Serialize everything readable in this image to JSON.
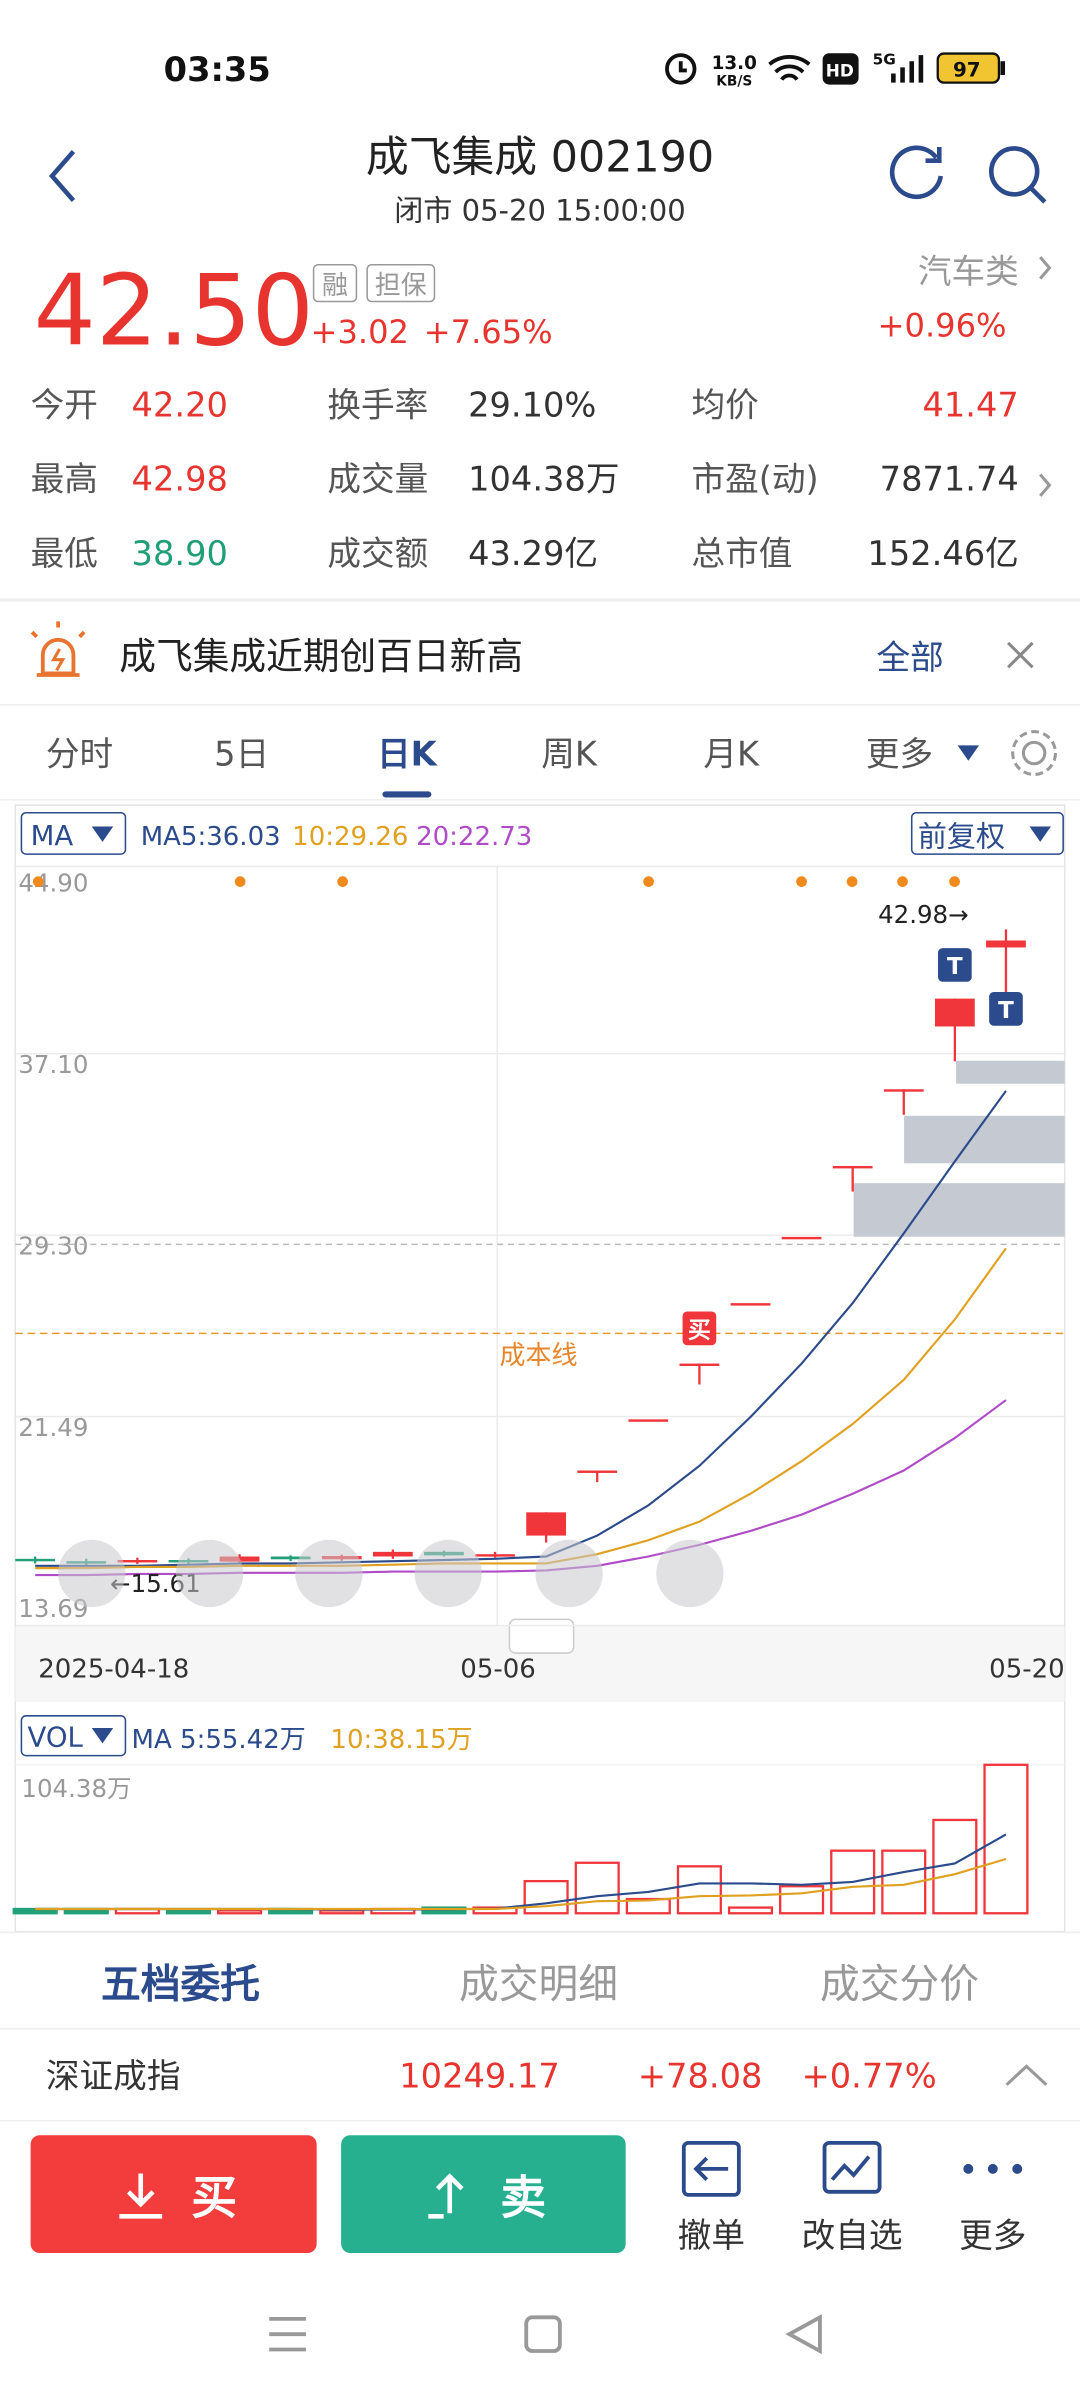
{
  "status_bar": {
    "time": "03:35",
    "net_speed": "13.0",
    "net_unit": "KB/S",
    "hd": "HD",
    "signal": "5G",
    "battery": "97"
  },
  "header": {
    "title": "成飞集成 002190",
    "subtitle": "闭市 05-20 15:00:00"
  },
  "quote": {
    "price": "42.50",
    "tags": [
      "融",
      "担保"
    ],
    "change": "+3.02",
    "change_pct": "+7.65%",
    "sector": "汽车类",
    "sector_change": "+0.96%"
  },
  "stats": [
    [
      {
        "label": "今开",
        "value": "42.20"
      },
      {
        "label": "换手率",
        "value": "29.10%"
      },
      {
        "label": "均价",
        "value": "41.47"
      }
    ],
    [
      {
        "label": "最高",
        "value": "42.98"
      },
      {
        "label": "成交量",
        "value": "104.38万"
      },
      {
        "label": "市盈(动)",
        "value": "7871.74"
      }
    ],
    [
      {
        "label": "最低",
        "value": "38.90"
      },
      {
        "label": "成交额",
        "value": "43.29亿"
      },
      {
        "label": "总市值",
        "value": "152.46亿"
      }
    ]
  ],
  "news": {
    "text": "成飞集成近期创百日新高",
    "action": "全部"
  },
  "tabs": [
    "分时",
    "5日",
    "日K",
    "周K",
    "月K",
    "更多"
  ],
  "kline": {
    "type": "candlestick",
    "indicator": "MA",
    "adjust": "前复权",
    "categories": [
      "2025-04-18",
      null,
      null,
      null,
      null,
      null,
      null,
      null,
      null,
      "05-06",
      null,
      null,
      null,
      null,
      null,
      null,
      null,
      null,
      null,
      "05-20"
    ],
    "open": [
      15.9,
      15.8,
      15.75,
      15.85,
      15.78,
      16.0,
      15.88,
      16.0,
      16.2,
      16.05,
      16.9,
      19.7,
      21.9,
      24.3,
      26.9,
      29.75,
      32.8,
      36.1,
      38.8,
      42.2
    ],
    "high": [
      16.0,
      15.9,
      15.95,
      15.92,
      16.1,
      16.05,
      16.08,
      16.3,
      16.25,
      16.2,
      17.9,
      19.7,
      21.9,
      24.3,
      26.9,
      29.75,
      32.8,
      36.1,
      40.0,
      42.98
    ],
    "low": [
      15.7,
      15.61,
      15.68,
      15.7,
      15.72,
      15.8,
      15.82,
      15.9,
      16.0,
      15.95,
      16.6,
      19.2,
      21.9,
      23.4,
      26.9,
      29.75,
      31.7,
      35.0,
      37.3,
      38.9
    ],
    "close": [
      15.8,
      15.75,
      15.85,
      15.78,
      16.0,
      15.88,
      16.02,
      16.2,
      16.05,
      16.1,
      17.9,
      19.7,
      21.9,
      24.3,
      26.9,
      29.75,
      32.8,
      36.1,
      40.0,
      42.5
    ],
    "ma": [
      {
        "name": "MA5:36.03",
        "color": "#2b4b8c",
        "values": [
          15.6,
          15.6,
          15.6,
          15.65,
          15.7,
          15.7,
          15.75,
          15.8,
          15.85,
          15.9,
          16.0,
          16.9,
          18.2,
          19.9,
          22.0,
          24.3,
          26.9,
          29.9,
          33.0,
          36.03
        ]
      },
      {
        "name": "10:29.26",
        "color": "#e0a020",
        "values": [
          15.5,
          15.5,
          15.55,
          15.55,
          15.6,
          15.6,
          15.6,
          15.65,
          15.7,
          15.7,
          15.7,
          16.1,
          16.7,
          17.5,
          18.7,
          20.1,
          21.7,
          23.6,
          26.2,
          29.26
        ]
      },
      {
        "name": "20:22.73",
        "color": "#b04cc8",
        "values": [
          15.2,
          15.2,
          15.25,
          15.25,
          15.3,
          15.3,
          15.3,
          15.35,
          15.35,
          15.35,
          15.4,
          15.6,
          16.0,
          16.5,
          17.1,
          17.8,
          18.7,
          19.7,
          21.1,
          22.73
        ]
      }
    ],
    "ylim": [
      13.69,
      44.9
    ],
    "yticks": [
      {
        "value": 44.9,
        "label": "44.90"
      },
      {
        "value": 37.1,
        "label": "37.10"
      },
      {
        "value": 29.3,
        "label": "29.30"
      },
      21.49,
      13.69
    ],
    "high_label": "42.98→",
    "low_label": "←15.61",
    "cost_line": {
      "label": "成本线",
      "value": 25.6
    },
    "trade_markers": [
      {
        "label": "买",
        "index": 13
      },
      {
        "label": "T",
        "index": 18
      },
      {
        "label": "T",
        "index": 19
      }
    ]
  },
  "volume": {
    "indicator": "VOL",
    "values": [
      3,
      3,
      3,
      2,
      2,
      3,
      2,
      3,
      4,
      4,
      22.6,
      35.5,
      10,
      33,
      4,
      19,
      44,
      44,
      65.6,
      104.38
    ],
    "ma": [
      {
        "name": "MA 5:55.42万",
        "color": "#2b4b8c",
        "values": [
          3,
          3,
          3,
          3,
          3,
          3,
          2.5,
          2.6,
          2.8,
          3.2,
          7,
          12,
          15,
          21,
          21,
          20,
          22,
          29,
          35,
          55.42
        ]
      },
      {
        "name": "10:38.15万",
        "color": "#e0a020",
        "values": [
          3,
          3,
          3,
          3,
          3,
          3,
          3,
          3,
          3,
          3,
          5,
          8.5,
          9,
          12,
          12.5,
          14,
          18.6,
          20,
          27.5,
          38.15
        ]
      }
    ],
    "ylim": [
      0,
      104.38
    ],
    "yticks": [
      {
        "value": 104.38,
        "label": "104.38万"
      }
    ]
  },
  "order_tabs": [
    "五档委托",
    "成交明细",
    "成交分价"
  ],
  "index_bar": {
    "name": "深证成指",
    "value": "10249.17",
    "change": "+78.08",
    "change_pct": "+0.77%"
  },
  "actions": {
    "buy": "买",
    "sell": "卖",
    "tools": [
      "撤单",
      "改自选",
      "更多"
    ]
  }
}
